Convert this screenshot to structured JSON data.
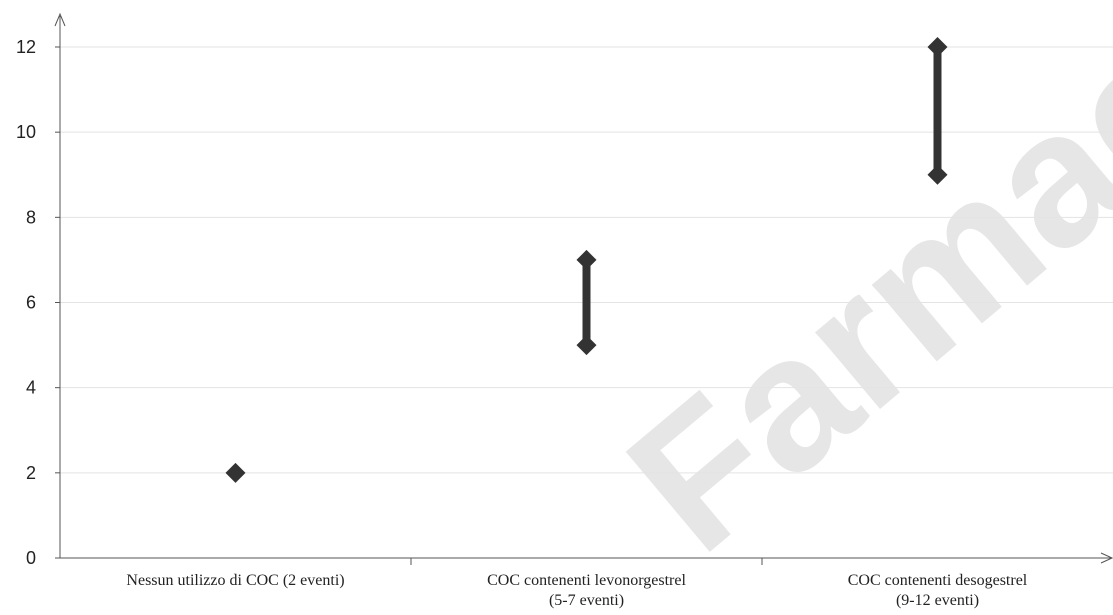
{
  "chart_data": {
    "type": "scatter",
    "title": "",
    "xlabel": "",
    "ylabel": "",
    "ylim": [
      0,
      12
    ],
    "yticks": [
      0,
      2,
      4,
      6,
      8,
      10,
      12
    ],
    "grid": true,
    "categories": [
      [
        "Nessun utilizzo di COC (2 eventi)"
      ],
      [
        "COC contenenti levonorgestrel",
        "(5-7 eventi)"
      ],
      [
        "COC contenenti desogestrel",
        "(9-12 eventi)"
      ]
    ],
    "ranges": [
      {
        "low": 2,
        "high": 2
      },
      {
        "low": 5,
        "high": 7
      },
      {
        "low": 9,
        "high": 12
      }
    ],
    "series_color": "#333333",
    "grid_color": "#e3e3e3"
  },
  "watermark": "Farmaco"
}
